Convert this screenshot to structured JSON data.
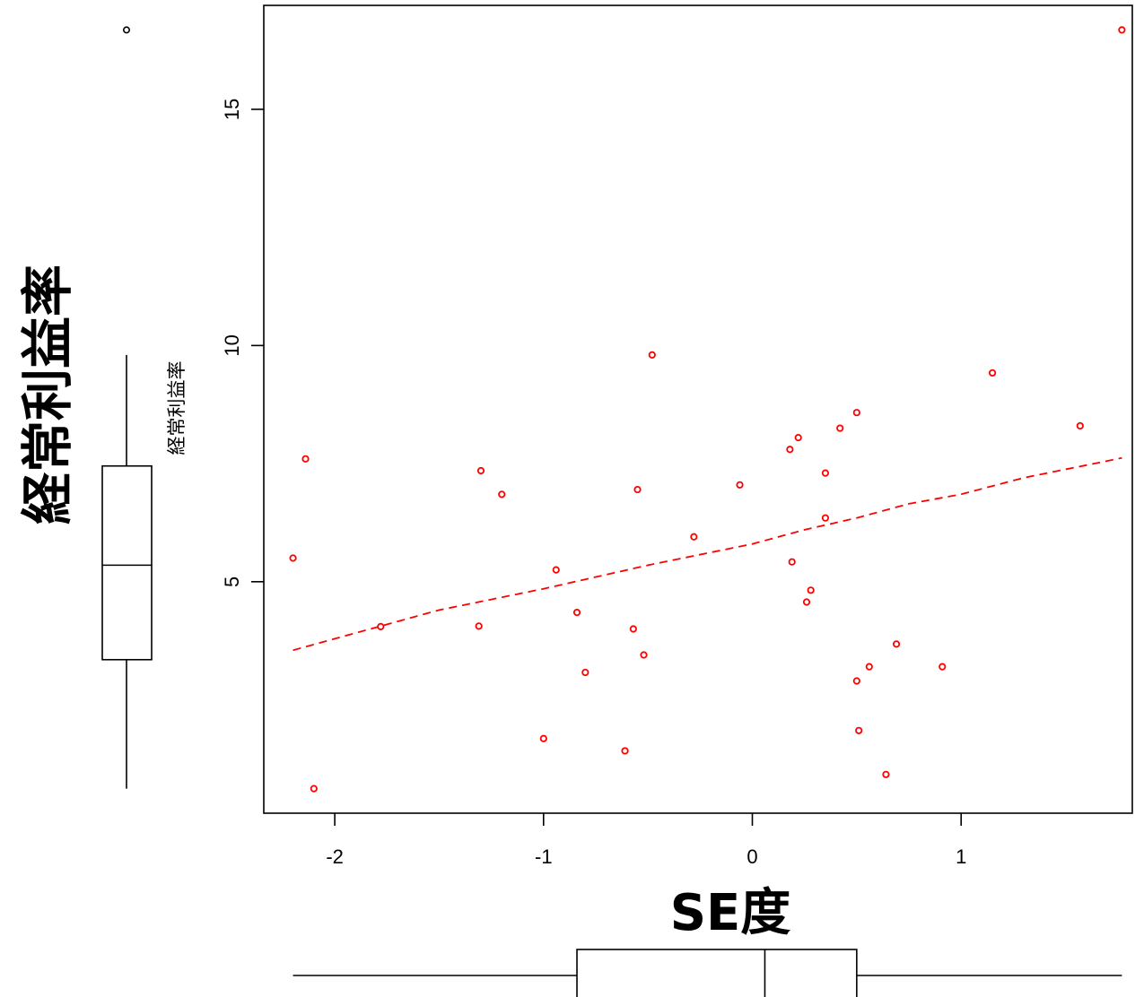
{
  "chart_data": {
    "type": "scatter",
    "xlabel": "SE度",
    "ylabel": "経常利益率",
    "boxplot_label": "経常利益率",
    "xlim": [
      -2.34,
      1.82
    ],
    "ylim": [
      0.1,
      17.2
    ],
    "x_ticks": [
      -2,
      -1,
      0,
      1
    ],
    "x_tick_labels": [
      "-2",
      "-1",
      "0",
      "1"
    ],
    "y_ticks": [
      5,
      10,
      15
    ],
    "y_tick_labels": [
      "5",
      "10",
      "15"
    ],
    "grid": false,
    "point_color": "#ff0000",
    "trend_color": "#ff0000",
    "points": [
      {
        "x": -2.2,
        "y": 5.5
      },
      {
        "x": -2.14,
        "y": 7.6
      },
      {
        "x": -2.1,
        "y": 0.62
      },
      {
        "x": -1.78,
        "y": 4.05
      },
      {
        "x": -1.3,
        "y": 7.35
      },
      {
        "x": -1.31,
        "y": 4.06
      },
      {
        "x": -1.2,
        "y": 6.85
      },
      {
        "x": -1.0,
        "y": 1.68
      },
      {
        "x": -0.94,
        "y": 5.25
      },
      {
        "x": -0.84,
        "y": 4.35
      },
      {
        "x": -0.8,
        "y": 3.08
      },
      {
        "x": -0.61,
        "y": 1.42
      },
      {
        "x": -0.57,
        "y": 4.0
      },
      {
        "x": -0.55,
        "y": 6.95
      },
      {
        "x": -0.52,
        "y": 3.45
      },
      {
        "x": -0.48,
        "y": 9.8
      },
      {
        "x": -0.28,
        "y": 5.95
      },
      {
        "x": -0.06,
        "y": 7.05
      },
      {
        "x": 0.18,
        "y": 7.8
      },
      {
        "x": 0.19,
        "y": 5.42
      },
      {
        "x": 0.22,
        "y": 8.05
      },
      {
        "x": 0.26,
        "y": 4.57
      },
      {
        "x": 0.28,
        "y": 4.82
      },
      {
        "x": 0.35,
        "y": 7.3
      },
      {
        "x": 0.35,
        "y": 6.35
      },
      {
        "x": 0.42,
        "y": 8.25
      },
      {
        "x": 0.5,
        "y": 8.58
      },
      {
        "x": 0.5,
        "y": 2.9
      },
      {
        "x": 0.51,
        "y": 1.85
      },
      {
        "x": 0.56,
        "y": 3.2
      },
      {
        "x": 0.64,
        "y": 0.92
      },
      {
        "x": 0.69,
        "y": 3.68
      },
      {
        "x": 0.91,
        "y": 3.2
      },
      {
        "x": 1.15,
        "y": 9.42
      },
      {
        "x": 1.57,
        "y": 8.3
      },
      {
        "x": 1.77,
        "y": 16.68
      }
    ],
    "trend_line": [
      {
        "x": -2.2,
        "y": 3.55
      },
      {
        "x": -1.5,
        "y": 4.4
      },
      {
        "x": -1.0,
        "y": 4.85
      },
      {
        "x": -0.5,
        "y": 5.35
      },
      {
        "x": 0.0,
        "y": 5.8
      },
      {
        "x": 0.25,
        "y": 6.1
      },
      {
        "x": 0.5,
        "y": 6.35
      },
      {
        "x": 0.75,
        "y": 6.65
      },
      {
        "x": 1.0,
        "y": 6.85
      },
      {
        "x": 1.3,
        "y": 7.2
      },
      {
        "x": 1.77,
        "y": 7.62
      }
    ],
    "y_boxplot": {
      "min": 0.62,
      "q1": 3.35,
      "median": 5.35,
      "q3": 7.45,
      "upper_whisker": 9.8,
      "outliers": [
        16.68
      ]
    },
    "x_boxplot": {
      "min": -2.2,
      "q1": -0.84,
      "median": 0.06,
      "q3": 0.5,
      "max": 1.77
    }
  }
}
